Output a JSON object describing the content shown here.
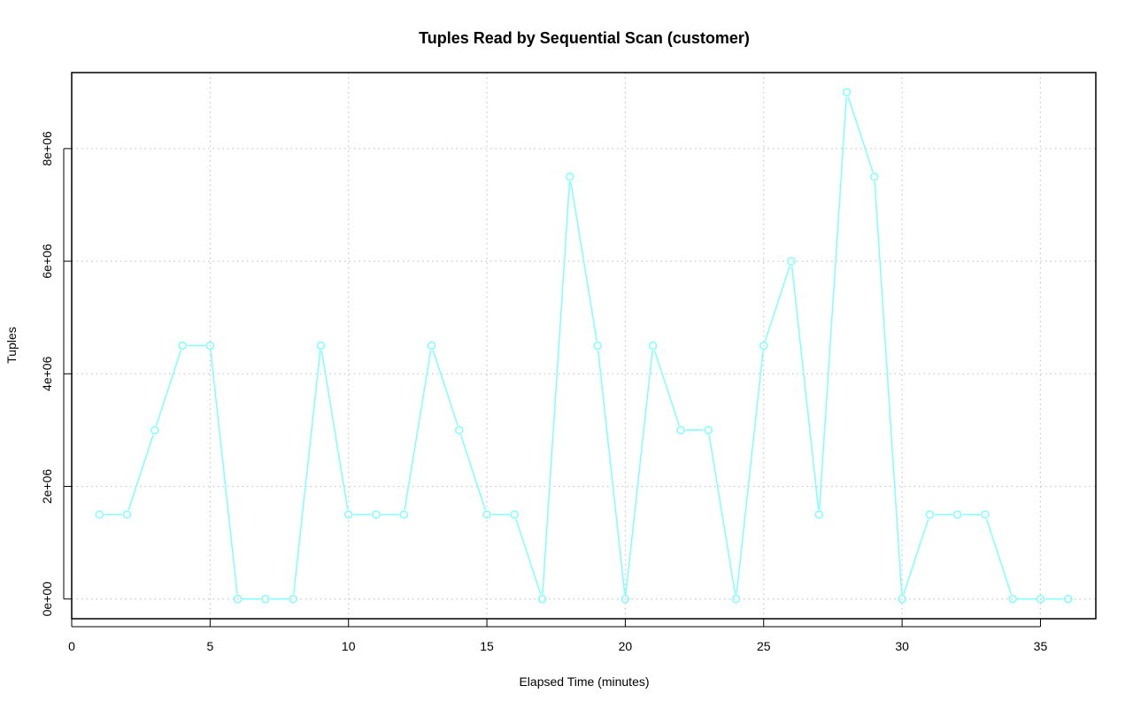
{
  "chart_data": {
    "type": "line",
    "title": "Tuples Read by Sequential Scan (customer)",
    "xlabel": "Elapsed Time (minutes)",
    "ylabel": "Tuples",
    "xlim": [
      0,
      37
    ],
    "ylim": [
      -350000,
      9350000
    ],
    "x_ticks": [
      0,
      5,
      10,
      15,
      20,
      25,
      30,
      35
    ],
    "x_tick_labels": [
      "0",
      "5",
      "10",
      "15",
      "20",
      "25",
      "30",
      "35"
    ],
    "y_ticks": [
      0,
      2000000,
      4000000,
      6000000,
      8000000
    ],
    "y_tick_labels": [
      "0e+00",
      "2e+06",
      "4e+06",
      "6e+06",
      "8e+06"
    ],
    "grid": true,
    "line_color": "#80ffff",
    "series": [
      {
        "x": [
          1,
          2,
          3,
          4,
          5,
          6,
          7,
          8,
          9,
          10,
          11,
          12,
          13,
          14,
          15,
          16,
          17,
          18,
          19,
          20,
          21,
          22,
          23,
          24,
          25,
          26,
          27,
          28,
          29,
          30,
          31,
          32,
          33,
          34,
          35,
          36
        ],
        "values": [
          1500000,
          1500000,
          3000000,
          4500000,
          4500000,
          0,
          0,
          0,
          4500000,
          1500000,
          1500000,
          1500000,
          4500000,
          3000000,
          1500000,
          1500000,
          0,
          7500000,
          4500000,
          0,
          4500000,
          3000000,
          3000000,
          0,
          4500000,
          6000000,
          1500000,
          9000000,
          7500000,
          0,
          1500000,
          1500000,
          1500000,
          0,
          0,
          0
        ]
      }
    ]
  }
}
